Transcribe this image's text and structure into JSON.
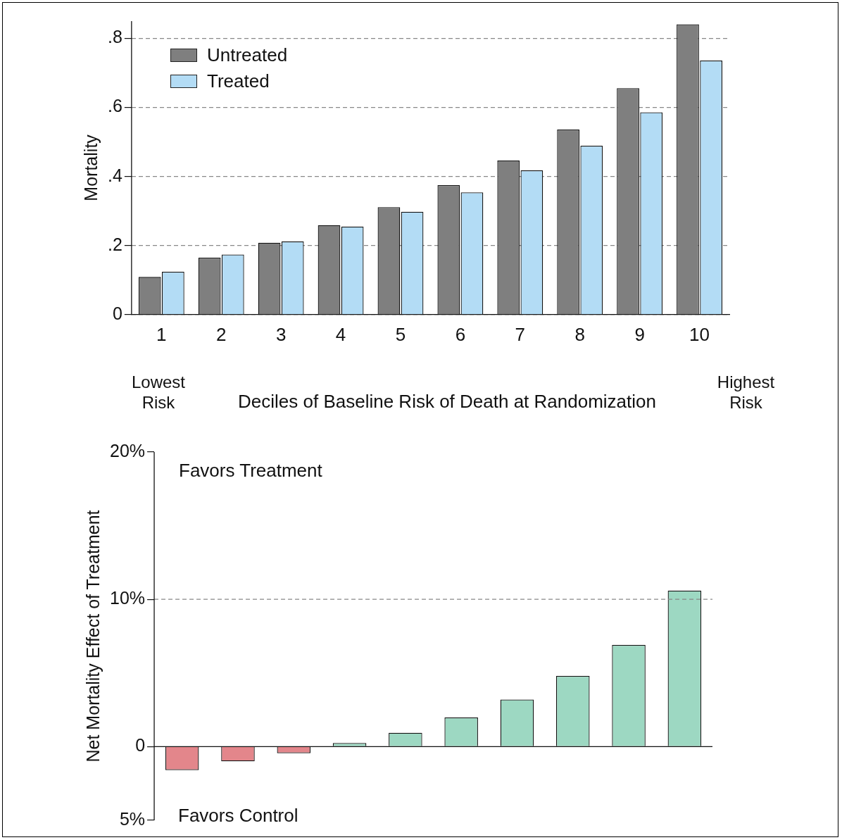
{
  "chart_data": [
    {
      "type": "bar",
      "categories": [
        "1",
        "2",
        "3",
        "4",
        "5",
        "6",
        "7",
        "8",
        "9",
        "10"
      ],
      "series": [
        {
          "name": "Untreated",
          "color": "#7f7f7f",
          "values": [
            0.109,
            0.165,
            0.208,
            0.259,
            0.311,
            0.375,
            0.446,
            0.536,
            0.656,
            0.841
          ]
        },
        {
          "name": "Treated",
          "color": "#b3dcf5",
          "values": [
            0.124,
            0.174,
            0.212,
            0.255,
            0.298,
            0.354,
            0.418,
            0.489,
            0.586,
            0.736
          ]
        }
      ],
      "ylabel": "Mortality",
      "xlabel": "Deciles of Baseline Risk of Death at Randomization",
      "ylim": [
        0,
        0.85
      ],
      "yticks": [
        0,
        {
          "value": 0.2,
          "label": ".2"
        },
        {
          "value": 0.4,
          "label": ".4"
        },
        {
          "value": 0.6,
          "label": ".6"
        },
        {
          "value": 0.8,
          "label": ".8"
        }
      ],
      "grid": "y",
      "legend": "top left",
      "annotations": [
        "Lowest Risk",
        "Highest Risk"
      ]
    },
    {
      "type": "bar",
      "categories": [
        null,
        null,
        null,
        null,
        null,
        null,
        null,
        null,
        null,
        null
      ],
      "values": [
        -1.6,
        -1.0,
        -0.45,
        0.25,
        0.94,
        1.98,
        3.2,
        4.8,
        6.9,
        10.6
      ],
      "colors": [
        "#e3868b",
        "#e3868b",
        "#e3868b",
        "#9dd8c2",
        "#9dd8c2",
        "#9dd8c2",
        "#9dd8c2",
        "#9dd8c2",
        "#9dd8c2",
        "#9dd8c2"
      ],
      "ylabel": "Net Mortality Effect of Treatment",
      "ylim": [
        -5,
        20
      ],
      "yticks": [
        {
          "value": -5,
          "label": "5%"
        },
        0,
        {
          "value": 10,
          "label": "10%"
        },
        {
          "value": 20,
          "label": "20%"
        }
      ],
      "tick_labels": "y",
      "ref_lines": [
        {
          "axis": "y",
          "value": 10,
          "line_style": "dashed",
          "color": "#888888"
        }
      ],
      "annotations": [
        "Favors Treatment",
        "Favors Control"
      ]
    }
  ]
}
